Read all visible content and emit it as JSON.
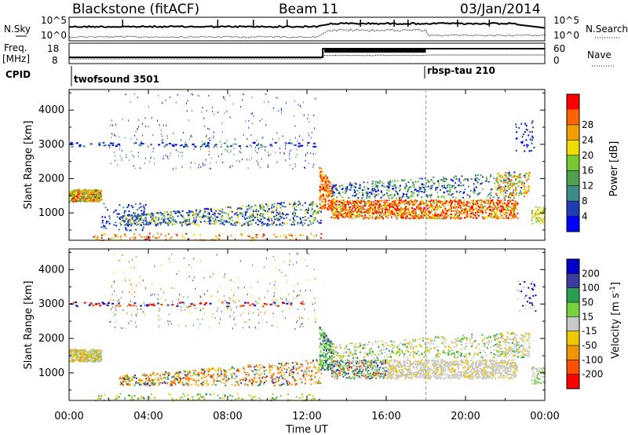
{
  "header": {
    "title": "Blackstone (fitACF)",
    "beam": "Beam 11",
    "date": "03/Jan/2014"
  },
  "noise_panel": {
    "left_label": "N.Sky",
    "right_label": "N.Search",
    "tick_top": "10^5",
    "tick_bottom": "10^0"
  },
  "freq_panel": {
    "left_label_1": "Freq.",
    "left_label_2": "[MHz]",
    "left_ticks": [
      "18",
      "8"
    ],
    "right_label": "Nave",
    "right_ticks": [
      "60",
      "0"
    ]
  },
  "cpid": {
    "label": "CPID",
    "modes": [
      {
        "name": "twofsound 3501",
        "start_hour": 0
      },
      {
        "name": "rbsp-tau 210",
        "start_hour": 18
      }
    ]
  },
  "colors": {
    "power_scale": [
      "#0000ff",
      "#1e3cb4",
      "#3c8c8c",
      "#50a050",
      "#78c830",
      "#f0dc00",
      "#f0a000",
      "#ff6400",
      "#ff0000"
    ],
    "velocity_scale": [
      "#0000c8",
      "#3c3ca0",
      "#28a050",
      "#78d23c",
      "#c8c8c8",
      "#f0c800",
      "#f09600",
      "#ff5000",
      "#ff0000"
    ]
  },
  "chart_data": [
    {
      "type": "heatmap",
      "name": "power",
      "xlabel": "",
      "ylabel": "Slant Range [km]",
      "xlim": [
        0,
        24
      ],
      "ylim": [
        200,
        4600
      ],
      "y_ticks": [
        "1000",
        "2000",
        "3000",
        "4000"
      ],
      "colorbar": {
        "label": "Power [dB]",
        "ticks": [
          "4",
          "8",
          "12",
          "16",
          "20",
          "24",
          "28"
        ]
      },
      "echo_bands": [
        {
          "start_hour": 0.0,
          "end_hour": 1.6,
          "range_low": 1350,
          "range_high": 1700,
          "level": "moderate"
        },
        {
          "start_hour": 1.5,
          "end_hour": 12.7,
          "range_low": 600,
          "range_high": 1250,
          "level": "low"
        },
        {
          "start_hour": 12.7,
          "end_hour": 13.2,
          "range_low": 1200,
          "range_high": 2400,
          "level": "high"
        },
        {
          "start_hour": 13.2,
          "end_hour": 22.5,
          "range_low": 900,
          "range_high": 1400,
          "level": "high"
        },
        {
          "start_hour": 13.2,
          "end_hour": 23.0,
          "range_low": 1500,
          "range_high": 2300,
          "level": "low"
        }
      ]
    },
    {
      "type": "heatmap",
      "name": "velocity",
      "xlabel": "Time UT",
      "ylabel": "Slant Range [km]",
      "xlim": [
        0,
        24
      ],
      "ylim": [
        200,
        4600
      ],
      "x_ticks": [
        "00:00",
        "04:00",
        "08:00",
        "12:00",
        "16:00",
        "20:00",
        "00:00"
      ],
      "y_ticks": [
        "1000",
        "2000",
        "3000",
        "4000"
      ],
      "colorbar": {
        "label_main": "Velocity [m s",
        "label_sup": "-1",
        "label_end": "]",
        "ticks": [
          "200",
          "100",
          "50",
          "15",
          "-15",
          "-50",
          "-100",
          "-200"
        ]
      }
    }
  ]
}
